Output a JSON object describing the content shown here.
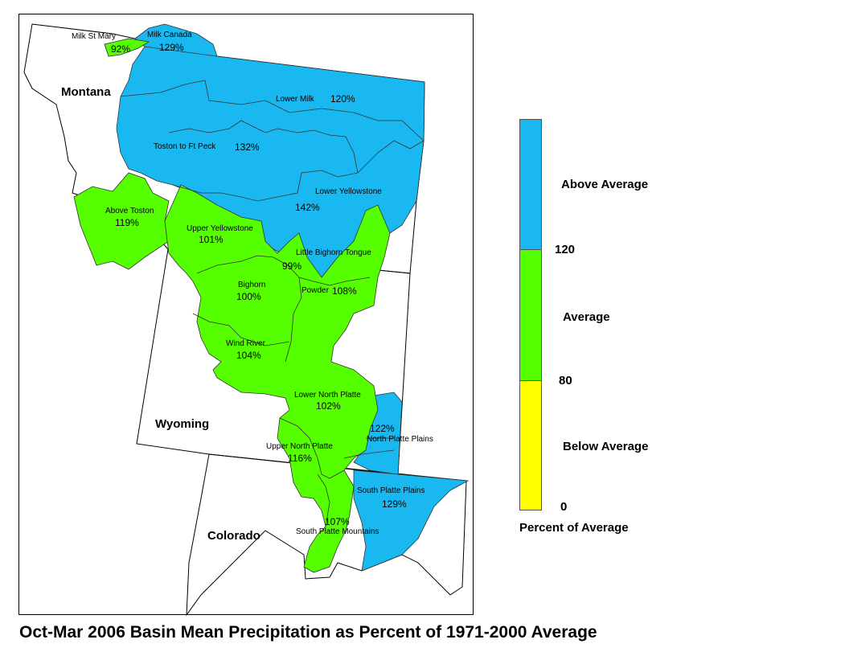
{
  "caption": "Oct-Mar 2006 Basin Mean Precipitation as Percent of 1971-2000 Average",
  "states": [
    "Montana",
    "Wyoming",
    "Colorado"
  ],
  "colors": {
    "above": "#1ab8f0",
    "average": "#55ff00",
    "below": "#ffff00"
  },
  "basins": [
    {
      "name": "Milk St Mary",
      "pct": "92%",
      "category": "average"
    },
    {
      "name": "Milk Canada",
      "pct": "129%",
      "category": "above"
    },
    {
      "name": "Lower Milk",
      "pct": "120%",
      "category": "above"
    },
    {
      "name": "Toston to Ft Peck",
      "pct": "132%",
      "category": "above"
    },
    {
      "name": "Lower Yellowstone",
      "pct": "142%",
      "category": "above"
    },
    {
      "name": "Above Toston",
      "pct": "119%",
      "category": "average"
    },
    {
      "name": "Upper Yellowstone",
      "pct": "101%",
      "category": "average"
    },
    {
      "name": "Little Bighorn Tongue",
      "pct": "99%",
      "category": "average"
    },
    {
      "name": "Bighorn",
      "pct": "100%",
      "category": "average"
    },
    {
      "name": "Powder",
      "pct": "108%",
      "category": "average"
    },
    {
      "name": "Wind River",
      "pct": "104%",
      "category": "average"
    },
    {
      "name": "Lower North Platte",
      "pct": "102%",
      "category": "average"
    },
    {
      "name": "North Platte Plains",
      "pct": "122%",
      "category": "above"
    },
    {
      "name": "Upper North Platte",
      "pct": "116%",
      "category": "average"
    },
    {
      "name": "South Platte Plains",
      "pct": "129%",
      "category": "above"
    },
    {
      "name": "South Platte Mountains",
      "pct": "107%",
      "category": "average"
    }
  ],
  "legend": {
    "title": "Percent of Average",
    "categories": [
      {
        "label": "Above Average",
        "color": "#1ab8f0"
      },
      {
        "label": "Average",
        "color": "#55ff00"
      },
      {
        "label": "Below Average",
        "color": "#ffff00"
      }
    ],
    "breaks": [
      "120",
      "80",
      "0"
    ]
  }
}
